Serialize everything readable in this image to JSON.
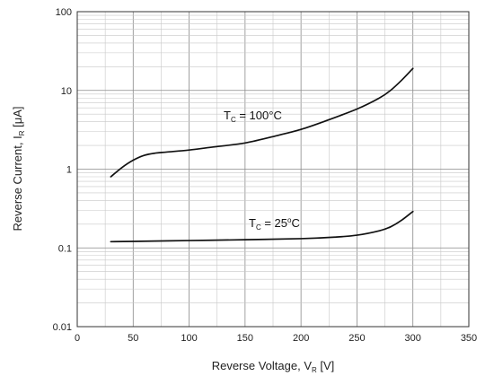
{
  "chart_data": {
    "type": "line",
    "xlabel_main": "Reverse Voltage, V",
    "xlabel_sub": "R",
    "xlabel_unit": " [V]",
    "ylabel_main": "Reverse Current, I",
    "ylabel_sub": "R",
    "ylabel_unit": " [μA]",
    "xlim": [
      0,
      350
    ],
    "ylim": [
      0.01,
      100
    ],
    "yscale": "log",
    "grid": true,
    "x_ticks": [
      "0",
      "50",
      "100",
      "150",
      "200",
      "250",
      "300",
      "350"
    ],
    "y_ticks": [
      "0.01",
      "0.1",
      "1",
      "10",
      "100"
    ],
    "annotations": [
      {
        "main": "T",
        "sub": "C",
        "rest": " = 100°C"
      },
      {
        "main": "T",
        "sub": "C",
        "rest": " = 25",
        "sup": "o",
        "tail": "C"
      }
    ],
    "series": [
      {
        "x": [
          30,
          40,
          50,
          60,
          70,
          80,
          100,
          120,
          150,
          180,
          200,
          220,
          250,
          270,
          280,
          290,
          300
        ],
        "y": [
          0.8,
          1.05,
          1.3,
          1.5,
          1.6,
          1.65,
          1.75,
          1.9,
          2.15,
          2.7,
          3.2,
          4.0,
          5.8,
          8.0,
          10.0,
          13.5,
          19.0
        ]
      },
      {
        "x": [
          30,
          50,
          100,
          150,
          200,
          230,
          250,
          270,
          280,
          290,
          300
        ],
        "y": [
          0.12,
          0.121,
          0.124,
          0.127,
          0.131,
          0.137,
          0.145,
          0.165,
          0.185,
          0.225,
          0.29
        ]
      }
    ]
  }
}
